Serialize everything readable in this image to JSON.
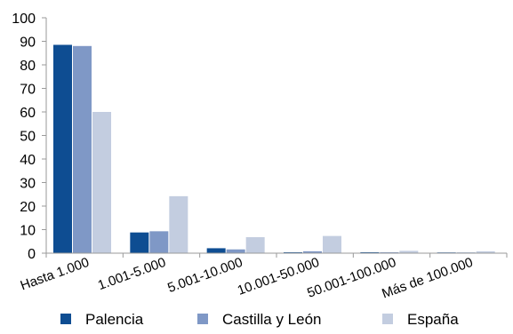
{
  "chart_data": {
    "type": "bar",
    "categories": [
      "Hasta 1.000",
      "1.001-5.000",
      "5.001-10.000",
      "10.001-50.000",
      "50.001-100.000",
      "Más de 100.000"
    ],
    "series": [
      {
        "name": "Palencia",
        "values": [
          88.5,
          8.8,
          2.1,
          0.2,
          0.4,
          0.0
        ],
        "color": "#0e4d92"
      },
      {
        "name": "Castilla y León",
        "values": [
          88.0,
          9.3,
          1.6,
          0.8,
          0.1,
          0.0
        ],
        "color": "#7f98c6"
      },
      {
        "name": "España",
        "values": [
          60.0,
          24.2,
          6.8,
          7.3,
          1.0,
          0.8
        ],
        "color": "#c3cde0"
      }
    ],
    "yticks": [
      0,
      10,
      20,
      30,
      40,
      50,
      60,
      70,
      80,
      90,
      100
    ],
    "ylim": [
      0,
      100
    ],
    "grid": false,
    "legend_position": "bottom"
  }
}
